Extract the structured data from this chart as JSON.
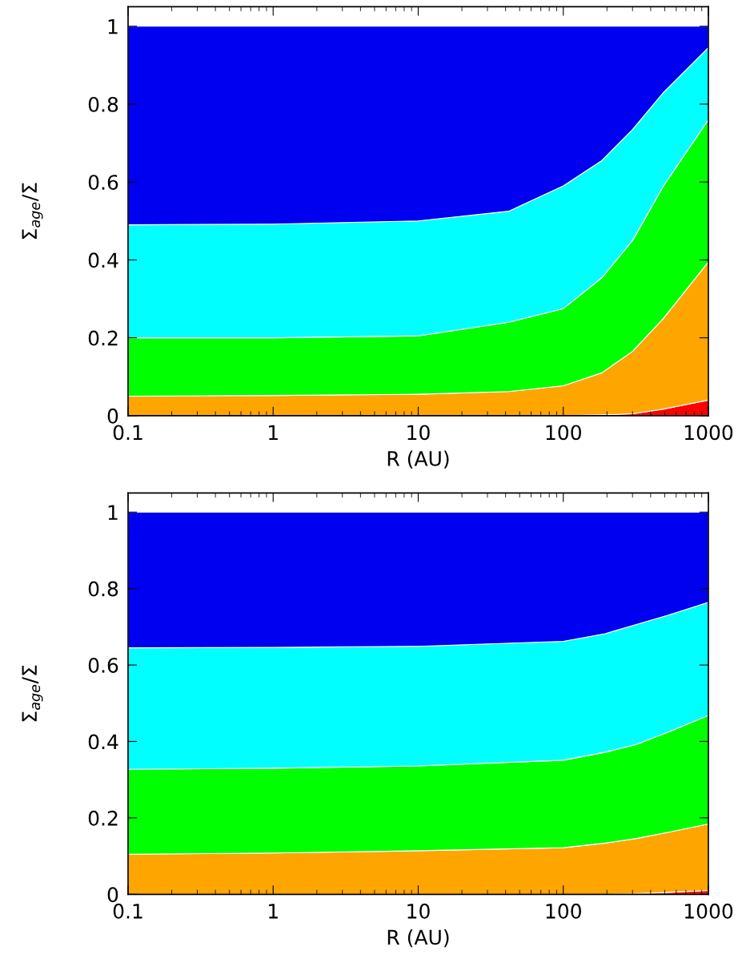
{
  "chart_data": [
    {
      "type": "area",
      "stacked": true,
      "log": "x",
      "xlabel": "R (AU)",
      "ylabel": "Σ$_{age}$/Σ",
      "xlim": [
        0.1,
        1000
      ],
      "ylim": [
        0,
        1.05
      ],
      "xticks": [
        {
          "value": 0.1,
          "label": "0.1"
        },
        1,
        10,
        100,
        1000
      ],
      "yticks": [
        0,
        0.2,
        0.4,
        0.6,
        0.8,
        1
      ],
      "x": [
        0.1,
        1,
        10,
        42,
        100,
        184,
        300,
        490,
        1000
      ],
      "series": [
        {
          "color": "#ff0000",
          "values": [
            0,
            0,
            0,
            0,
            0,
            0.002,
            0.005,
            0.017,
            0.04
          ]
        },
        {
          "color": "#ffa500",
          "values": [
            0.05,
            0.052,
            0.055,
            0.062,
            0.077,
            0.108,
            0.16,
            0.233,
            0.355
          ]
        },
        {
          "color": "#00ff00",
          "values": [
            0.15,
            0.148,
            0.15,
            0.178,
            0.198,
            0.244,
            0.285,
            0.34,
            0.365
          ]
        },
        {
          "color": "#00ffff",
          "values": [
            0.29,
            0.292,
            0.295,
            0.285,
            0.315,
            0.301,
            0.285,
            0.24,
            0.185
          ]
        },
        {
          "color": "#0000f0",
          "values": [
            0.51,
            0.508,
            0.5,
            0.475,
            0.41,
            0.345,
            0.265,
            0.17,
            0.055
          ]
        }
      ]
    },
    {
      "type": "area",
      "stacked": true,
      "log": "x",
      "xlabel": "R (AU)",
      "ylabel": "Σ$_{age}$/Σ",
      "xlim": [
        0.1,
        1000
      ],
      "ylim": [
        0,
        1.05
      ],
      "xticks": [
        {
          "value": 0.1,
          "label": "0.1"
        },
        1,
        10,
        100,
        1000
      ],
      "yticks": [
        0,
        0.2,
        0.4,
        0.6,
        0.8,
        1
      ],
      "x": [
        0.1,
        1,
        10,
        100,
        194,
        318,
        524,
        1000
      ],
      "series": [
        {
          "color": "#ff0000",
          "values": [
            0,
            0,
            0,
            0,
            0,
            0.002,
            0.005,
            0.01
          ]
        },
        {
          "color": "#ffa500",
          "values": [
            0.105,
            0.108,
            0.114,
            0.122,
            0.134,
            0.144,
            0.157,
            0.174
          ]
        },
        {
          "color": "#00ff00",
          "values": [
            0.222,
            0.222,
            0.222,
            0.229,
            0.238,
            0.246,
            0.262,
            0.284
          ]
        },
        {
          "color": "#00ffff",
          "values": [
            0.318,
            0.316,
            0.313,
            0.311,
            0.31,
            0.314,
            0.306,
            0.296
          ]
        },
        {
          "color": "#0000f0",
          "values": [
            0.355,
            0.354,
            0.351,
            0.338,
            0.318,
            0.294,
            0.27,
            0.236
          ]
        }
      ]
    }
  ]
}
